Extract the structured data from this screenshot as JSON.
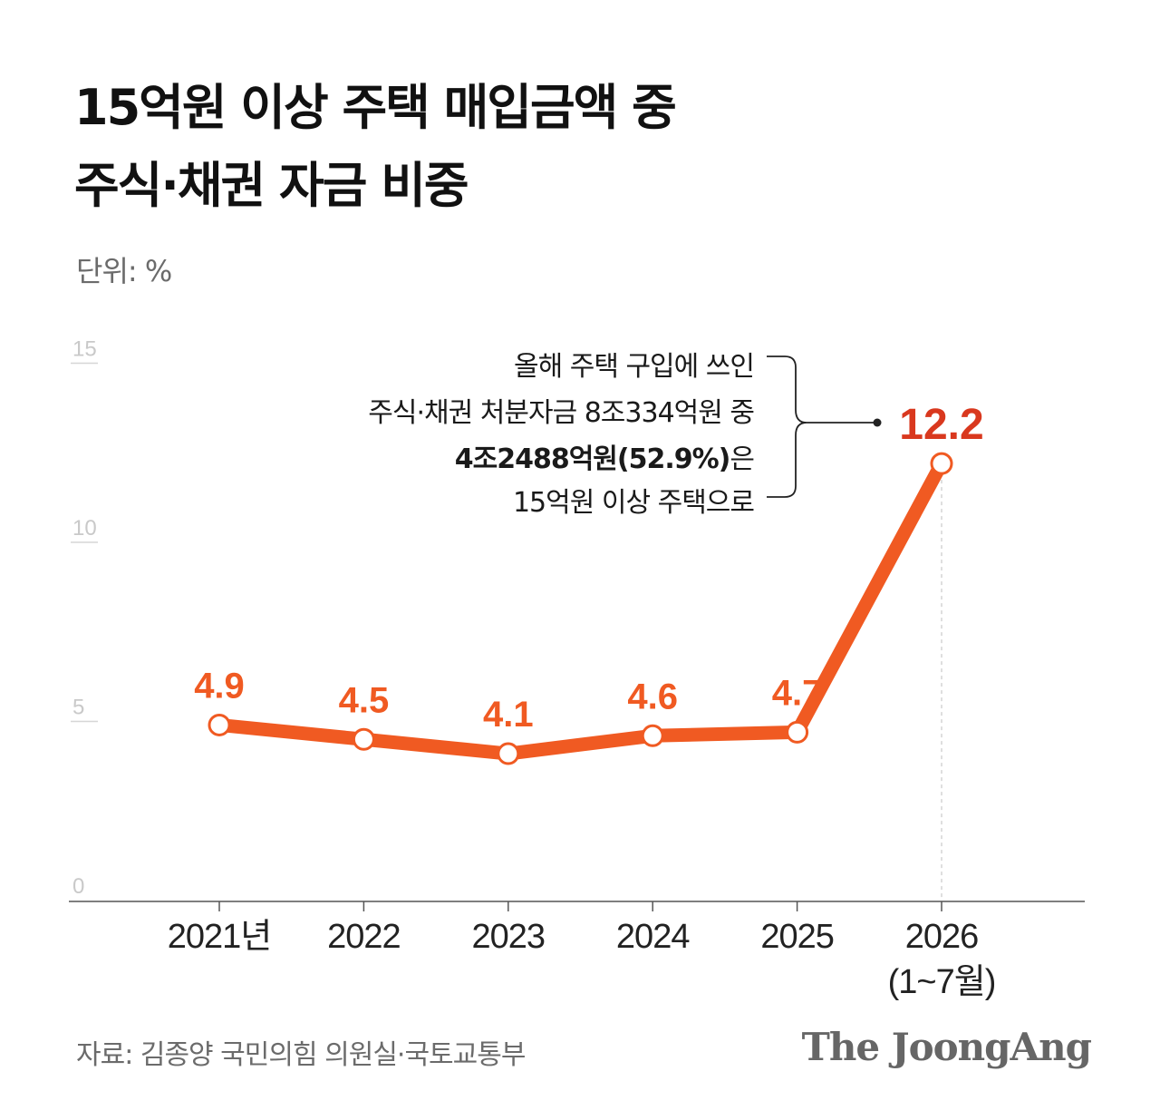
{
  "title": {
    "line1": "15억원 이상 주택 매입금액 중",
    "line2": "주식·채권 자금 비중"
  },
  "unit_label": "단위: %",
  "chart_data": {
    "type": "line",
    "categories": [
      "2021년",
      "2022",
      "2023",
      "2024",
      "2025",
      "2026"
    ],
    "category_sublabels": [
      "",
      "",
      "",
      "",
      "",
      "(1~7월)"
    ],
    "series": [
      {
        "values": [
          4.9,
          4.5,
          4.1,
          4.6,
          4.7,
          12.2
        ],
        "color": "#f05a22"
      }
    ],
    "data_labels": [
      "4.9",
      "4.5",
      "4.1",
      "4.6",
      "4.7",
      "12.2"
    ],
    "highlight_index": 5,
    "highlight_color": "#d9381e",
    "yticks": [
      0,
      5,
      10,
      15
    ],
    "ylim": [
      0,
      15
    ],
    "grid": false,
    "annotation": {
      "lines": [
        {
          "text": "올해 주택 구입에 쓰인",
          "bold": false
        },
        {
          "text": "주식·채권 처분자금 8조334억원 중",
          "bold": false
        },
        {
          "text": "4조2488억원(52.9%)",
          "bold": true,
          "suffix": "은"
        },
        {
          "text": "15억원 이상 주택으로",
          "bold": false
        }
      ]
    }
  },
  "source": "자료: 김종양 국민의힘 의원실·국토교통부",
  "brand": "The JoongAng"
}
